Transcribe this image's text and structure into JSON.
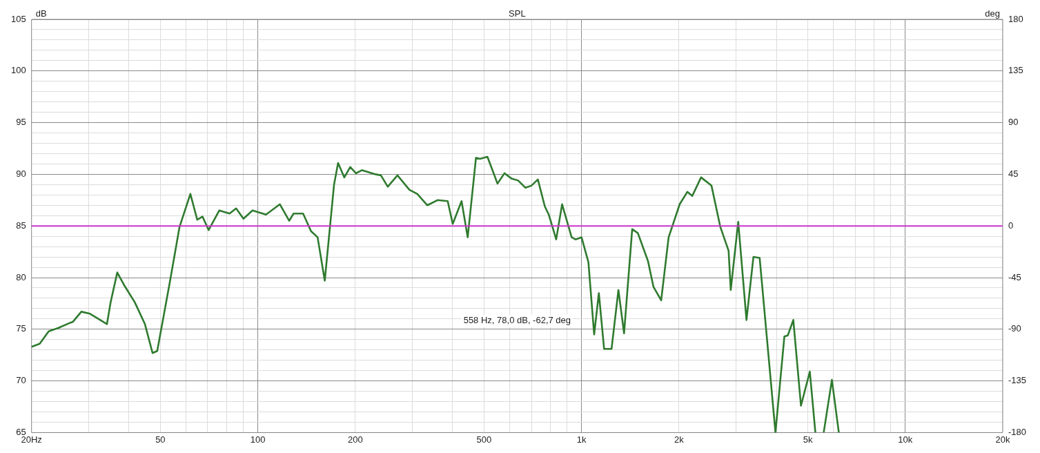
{
  "chart_data": {
    "type": "line",
    "title": "SPL",
    "ylabel": "dB",
    "y2label": "deg",
    "annotations": [
      "558 Hz, 78,0 dB, -62,7 deg"
    ],
    "log": "x",
    "grid": true,
    "legend": false,
    "marker": "none",
    "line_style": "solid",
    "xlim": [
      20,
      20000
    ],
    "xticks": [
      {
        "value": 20,
        "label": "20Hz"
      },
      {
        "value": 30,
        "label": null
      },
      {
        "value": 40,
        "label": null
      },
      50,
      {
        "value": 60,
        "label": null
      },
      {
        "value": 70,
        "label": null
      },
      {
        "value": 80,
        "label": null
      },
      {
        "value": 90,
        "label": null
      },
      100,
      200,
      {
        "value": 300,
        "label": null
      },
      {
        "value": 400,
        "label": null
      },
      500,
      {
        "value": 600,
        "label": null
      },
      {
        "value": 700,
        "label": null
      },
      {
        "value": 800,
        "label": null
      },
      {
        "value": 900,
        "label": null
      },
      {
        "value": 1000,
        "label": "1k"
      },
      {
        "value": 2000,
        "label": "2k"
      },
      {
        "value": 3000,
        "label": null
      },
      {
        "value": 4000,
        "label": null
      },
      {
        "value": 5000,
        "label": "5k"
      },
      {
        "value": 6000,
        "label": null
      },
      {
        "value": 7000,
        "label": null
      },
      {
        "value": 8000,
        "label": null
      },
      {
        "value": 9000,
        "label": null
      },
      {
        "value": 10000,
        "label": "10k"
      },
      {
        "value": 20000,
        "label": "20k"
      }
    ],
    "ylim": [
      65,
      105
    ],
    "yticks": [
      65,
      {
        "value": 66,
        "label": null
      },
      {
        "value": 67,
        "label": null
      },
      {
        "value": 68,
        "label": null
      },
      {
        "value": 69,
        "label": null
      },
      70,
      {
        "value": 71,
        "label": null
      },
      {
        "value": 72,
        "label": null
      },
      {
        "value": 73,
        "label": null
      },
      {
        "value": 74,
        "label": null
      },
      75,
      {
        "value": 76,
        "label": null
      },
      {
        "value": 77,
        "label": null
      },
      {
        "value": 78,
        "label": null
      },
      {
        "value": 79,
        "label": null
      },
      80,
      {
        "value": 81,
        "label": null
      },
      {
        "value": 82,
        "label": null
      },
      {
        "value": 83,
        "label": null
      },
      {
        "value": 84,
        "label": null
      },
      85,
      {
        "value": 86,
        "label": null
      },
      {
        "value": 87,
        "label": null
      },
      {
        "value": 88,
        "label": null
      },
      {
        "value": 89,
        "label": null
      },
      90,
      {
        "value": 91,
        "label": null
      },
      {
        "value": 92,
        "label": null
      },
      {
        "value": 93,
        "label": null
      },
      {
        "value": 94,
        "label": null
      },
      95,
      {
        "value": 96,
        "label": null
      },
      {
        "value": 97,
        "label": null
      },
      {
        "value": 98,
        "label": null
      },
      {
        "value": 99,
        "label": null
      },
      100,
      {
        "value": 101,
        "label": null
      },
      {
        "value": 102,
        "label": null
      },
      {
        "value": 103,
        "label": null
      },
      {
        "value": 104,
        "label": null
      },
      105
    ],
    "y2lim": [
      -180,
      180
    ],
    "y2ticks": [
      -180,
      -135,
      -90,
      -45,
      0,
      45,
      90,
      135,
      180
    ],
    "ref_lines": [
      {
        "axis": "y2",
        "value": 0,
        "color": "#cc33cc"
      }
    ],
    "series": [
      {
        "color": "#2f7a2f",
        "x": [
          20,
          21.2,
          22.6,
          24.1,
          26.2,
          26.8,
          28.5,
          30.3,
          32.6,
          34.2,
          35.1,
          36.8,
          38.6,
          41.7,
          44.8,
          47.3,
          48.9,
          53.3,
          57.3,
          61.9,
          65,
          67.5,
          70.5,
          76,
          81.8,
          85.7,
          90.3,
          96.3,
          106,
          117,
          125,
          129,
          138,
          146,
          153,
          161,
          172,
          177,
          185,
          193,
          201,
          210,
          231,
          240,
          252,
          270,
          294,
          311,
          334,
          359,
          386,
          400,
          426,
          445,
          472,
          486,
          512,
          550,
          578,
          607,
          637,
          671,
          700,
          733,
          770,
          792,
          835,
          871,
          932,
          958,
          1000,
          1050,
          1094,
          1131,
          1174,
          1238,
          1300,
          1353,
          1434,
          1493,
          1604,
          1668,
          1762,
          1858,
          2010,
          2122,
          2198,
          2340,
          2520,
          2684,
          2846,
          2890,
          3048,
          3232,
          3396,
          3550,
          3972,
          4232,
          4336,
          4510,
          4762,
          5072,
          5276,
          5400,
          5598,
          5934,
          6234
        ],
        "values": [
          73.3,
          73.6,
          74.8,
          75.1,
          75.6,
          75.7,
          76.7,
          76.5,
          75.9,
          75.5,
          77.6,
          80.5,
          79.3,
          77.6,
          75.5,
          72.7,
          72.9,
          79.3,
          84.9,
          88.1,
          85.6,
          85.9,
          84.6,
          86.5,
          86.2,
          86.7,
          85.7,
          86.5,
          86.1,
          87.1,
          85.5,
          86.2,
          86.2,
          84.5,
          83.9,
          79.7,
          89,
          91.1,
          89.7,
          90.7,
          90.1,
          90.4,
          90,
          89.9,
          88.8,
          89.9,
          88.5,
          88.1,
          87,
          87.5,
          87.4,
          85.2,
          87.4,
          83.9,
          91.6,
          91.5,
          91.7,
          89.1,
          90.1,
          89.6,
          89.4,
          88.7,
          88.9,
          89.5,
          86.9,
          86.1,
          83.7,
          87.1,
          83.9,
          83.7,
          83.9,
          81.5,
          74.5,
          78.5,
          73.1,
          73.1,
          78.8,
          74.6,
          84.7,
          84.3,
          81.6,
          79.1,
          77.8,
          83.9,
          87.1,
          88.3,
          87.9,
          89.7,
          88.9,
          84.9,
          82.6,
          78.8,
          85.4,
          75.9,
          82,
          81.9,
          65,
          74.3,
          74.4,
          75.9,
          67.6,
          70.9,
          65,
          null,
          65,
          70.1,
          65
        ]
      }
    ]
  }
}
